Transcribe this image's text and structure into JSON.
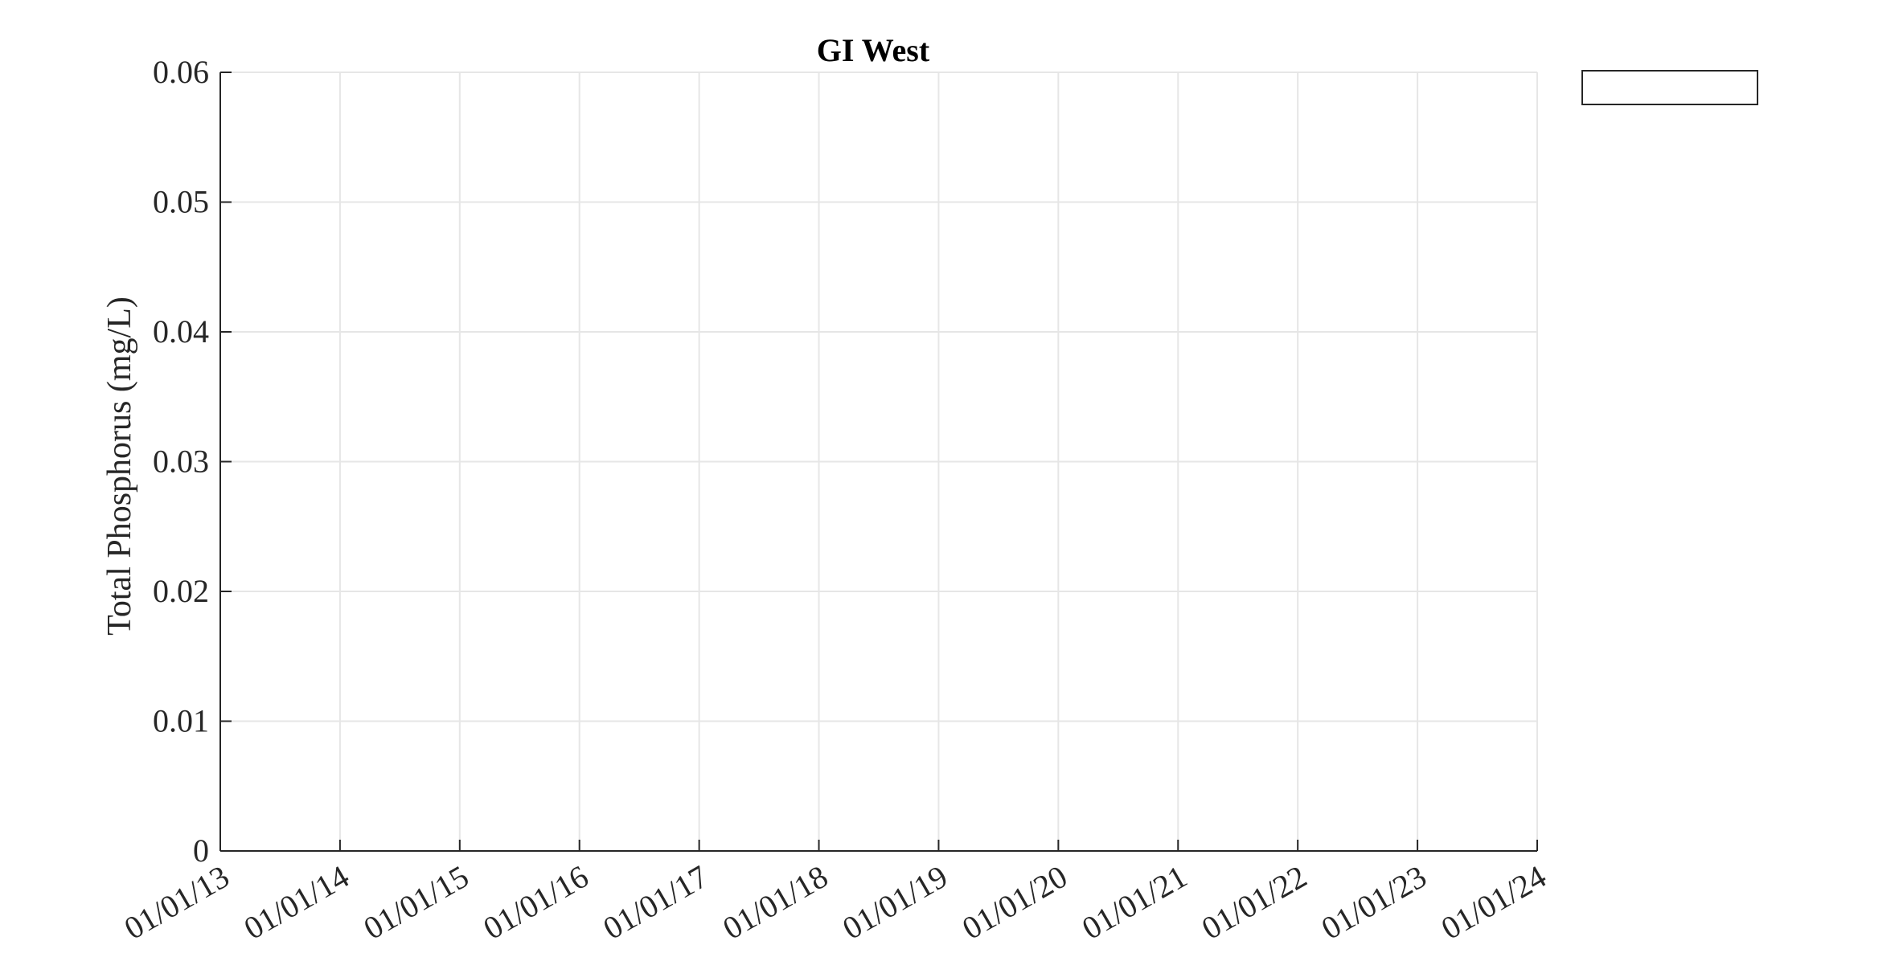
{
  "chart_data": {
    "type": "scatter",
    "title": "GI West",
    "xlabel": "",
    "ylabel": "Total Phosphorus (mg/L)",
    "x_ticks": [
      "01/01/13",
      "01/01/14",
      "01/01/15",
      "01/01/16",
      "01/01/17",
      "01/01/18",
      "01/01/19",
      "01/01/20",
      "01/01/21",
      "01/01/22",
      "01/01/23",
      "01/01/24"
    ],
    "y_ticks": [
      "0",
      "0.01",
      "0.02",
      "0.03",
      "0.04",
      "0.05",
      "0.06"
    ],
    "xlim": [
      "01/01/13",
      "01/01/24"
    ],
    "ylim": [
      0,
      0.06
    ],
    "grid": true,
    "legend": {
      "position": "outside-top-right",
      "entries": []
    },
    "series": []
  },
  "colors": {
    "grid": "#e6e6e6",
    "axis": "#262626",
    "legend_border": "#262626"
  }
}
